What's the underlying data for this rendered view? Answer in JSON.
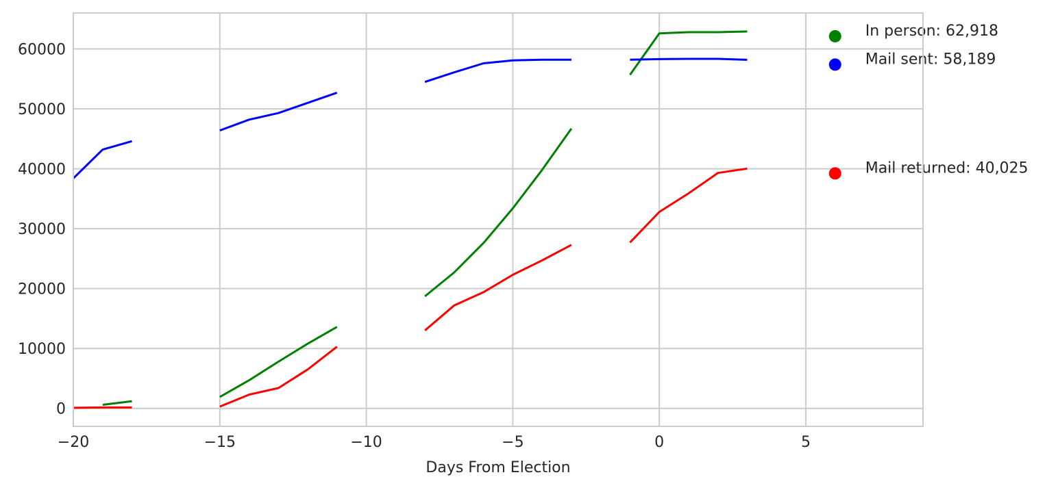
{
  "chart_data": {
    "type": "line",
    "title": "",
    "xlabel": "Days From Election",
    "ylabel": "",
    "xlim": [
      -20,
      9
    ],
    "ylim": [
      -3000,
      66000
    ],
    "xticks": [
      -20,
      -15,
      -10,
      -5,
      0,
      5
    ],
    "xtick_labels": [
      "−20",
      "−15",
      "−10",
      "−5",
      "0",
      "5"
    ],
    "yticks": [
      0,
      10000,
      20000,
      30000,
      40000,
      50000,
      60000
    ],
    "ytick_labels": [
      "0",
      "10000",
      "20000",
      "30000",
      "40000",
      "50000",
      "60000"
    ],
    "grid": true,
    "legend_placement": "right, annotated",
    "series": [
      {
        "key": "in_person",
        "color": "#008000",
        "segments": [
          [
            [
              -19,
              600
            ],
            [
              -18,
              1200
            ]
          ],
          [
            [
              -15,
              1900
            ],
            [
              -14,
              4700
            ],
            [
              -13,
              7800
            ],
            [
              -12,
              10800
            ],
            [
              -11,
              13600
            ]
          ],
          [
            [
              -8,
              18700
            ],
            [
              -7,
              22700
            ],
            [
              -6,
              27600
            ],
            [
              -5,
              33400
            ],
            [
              -4,
              39800
            ],
            [
              -3,
              46700
            ]
          ],
          [
            [
              -1,
              55700
            ],
            [
              0,
              62600
            ],
            [
              1,
              62800
            ],
            [
              2,
              62800
            ],
            [
              3,
              62918
            ]
          ]
        ]
      },
      {
        "key": "mail_sent",
        "color": "#0000ff",
        "segments": [
          [
            [
              -20,
              38400
            ],
            [
              -19,
              43200
            ],
            [
              -18,
              44600
            ]
          ],
          [
            [
              -15,
              46400
            ],
            [
              -14,
              48200
            ],
            [
              -13,
              49300
            ],
            [
              -12,
              51000
            ],
            [
              -11,
              52700
            ]
          ],
          [
            [
              -8,
              54500
            ],
            [
              -7,
              56100
            ],
            [
              -6,
              57600
            ],
            [
              -5,
              58100
            ],
            [
              -4,
              58200
            ],
            [
              -3,
              58200
            ]
          ],
          [
            [
              -1,
              58200
            ],
            [
              0,
              58300
            ],
            [
              1,
              58350
            ],
            [
              2,
              58350
            ],
            [
              3,
              58189
            ]
          ]
        ]
      },
      {
        "key": "mail_returned",
        "color": "#ff0000",
        "segments": [
          [
            [
              -20,
              100
            ],
            [
              -19,
              150
            ],
            [
              -18,
              150
            ]
          ],
          [
            [
              -15,
              300
            ],
            [
              -14,
              2300
            ],
            [
              -13,
              3400
            ],
            [
              -12,
              6500
            ],
            [
              -11,
              10300
            ]
          ],
          [
            [
              -8,
              13000
            ],
            [
              -7,
              17200
            ],
            [
              -6,
              19400
            ],
            [
              -5,
              22300
            ],
            [
              -4,
              24700
            ],
            [
              -3,
              27300
            ]
          ],
          [
            [
              -1,
              27700
            ],
            [
              0,
              32800
            ],
            [
              1,
              35900
            ],
            [
              2,
              39300
            ],
            [
              3,
              40025
            ]
          ]
        ]
      }
    ],
    "annotations": [
      {
        "series": "in_person",
        "text": "In person: 62,918",
        "y": 62918,
        "color": "#008000"
      },
      {
        "series": "mail_sent",
        "text": "Mail sent: 58,189",
        "y": 58189,
        "color": "#0000ff"
      },
      {
        "series": "mail_returned",
        "text": "Mail returned: 40,025",
        "y": 40025,
        "color": "#ff0000"
      }
    ]
  }
}
